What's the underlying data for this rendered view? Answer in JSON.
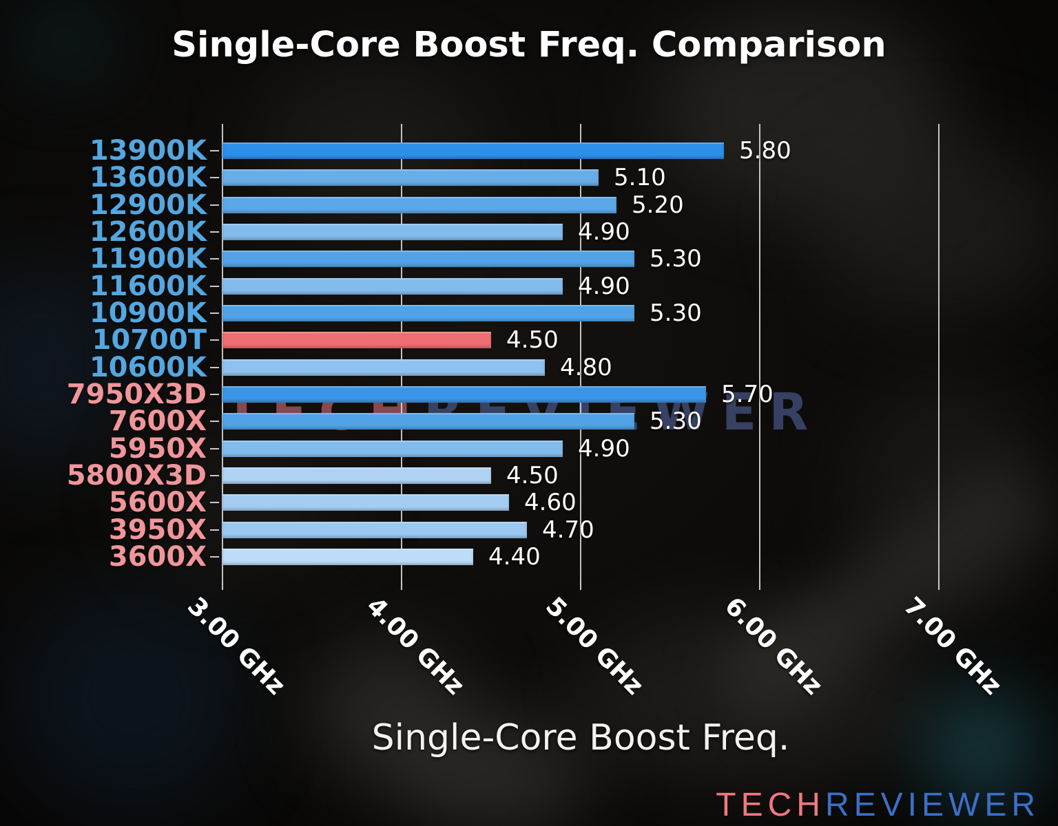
{
  "title": "Single-Core Boost Freq. Comparison",
  "watermark": {
    "tech": "TECH",
    "reviewer": "REVIEWER"
  },
  "logo": {
    "tech": "TECH",
    "reviewer": "REVIEWER"
  },
  "colors": {
    "title": "#ffffff",
    "grid": "#d6d6d6",
    "value_label": "#ffffff",
    "intel_label": "#54a7e0",
    "amd_label": "#f0969a",
    "highlight_bar": "#ee6e72",
    "watermark_tech": "#96555e",
    "watermark_reviewer": "#51649f",
    "logo_tech": "#f0797f",
    "logo_reviewer": "#3c6fc8"
  },
  "chart_data": {
    "type": "bar",
    "orientation": "horizontal",
    "title": "Single-Core Boost Freq. Comparison",
    "xlabel": "Single-Core Boost Freq.",
    "ylabel": "",
    "unit": "GHz",
    "xlim": [
      3.0,
      7.45
    ],
    "grid": true,
    "legend": "none",
    "tick_label_rotation_deg": 45,
    "x_ticks": [
      {
        "value": 3.0,
        "label": "3.00 GHz"
      },
      {
        "value": 4.0,
        "label": "4.00 GHz"
      },
      {
        "value": 5.0,
        "label": "5.00 GHz"
      },
      {
        "value": 6.0,
        "label": "6.00 GHz"
      },
      {
        "value": 7.0,
        "label": "7.00 GHz"
      }
    ],
    "categories": [
      "13900K",
      "13600K",
      "12900K",
      "12600K",
      "11900K",
      "11600K",
      "10900K",
      "10700T",
      "10600K",
      "7950X3D",
      "7600X",
      "5950X",
      "5800X3D",
      "5600X",
      "3950X",
      "3600X"
    ],
    "values": [
      5.8,
      5.1,
      5.2,
      4.9,
      5.3,
      4.9,
      5.3,
      4.5,
      4.8,
      5.7,
      5.3,
      4.9,
      4.5,
      4.6,
      4.7,
      4.4
    ],
    "bars": [
      {
        "label": "13900K",
        "value": 5.8,
        "value_label": "5.80",
        "bar_color": "#2d8fea",
        "label_color": "#54a7e0"
      },
      {
        "label": "13600K",
        "value": 5.1,
        "value_label": "5.10",
        "bar_color": "#68ade8",
        "label_color": "#54a7e0"
      },
      {
        "label": "12900K",
        "value": 5.2,
        "value_label": "5.20",
        "bar_color": "#5ba7e7",
        "label_color": "#54a7e0"
      },
      {
        "label": "12600K",
        "value": 4.9,
        "value_label": "4.90",
        "bar_color": "#82bbec",
        "label_color": "#54a7e0"
      },
      {
        "label": "11900K",
        "value": 5.3,
        "value_label": "5.30",
        "bar_color": "#51a2e6",
        "label_color": "#54a7e0"
      },
      {
        "label": "11600K",
        "value": 4.9,
        "value_label": "4.90",
        "bar_color": "#82bbec",
        "label_color": "#54a7e0"
      },
      {
        "label": "10900K",
        "value": 5.3,
        "value_label": "5.30",
        "bar_color": "#51a2e6",
        "label_color": "#54a7e0"
      },
      {
        "label": "10700T",
        "value": 4.5,
        "value_label": "4.50",
        "bar_color": "#ee6e72",
        "label_color": "#54a7e0"
      },
      {
        "label": "10600K",
        "value": 4.8,
        "value_label": "4.80",
        "bar_color": "#8fc2ee",
        "label_color": "#54a7e0"
      },
      {
        "label": "7950X3D",
        "value": 5.7,
        "value_label": "5.70",
        "bar_color": "#3b95e6",
        "label_color": "#f0969a"
      },
      {
        "label": "7600X",
        "value": 5.3,
        "value_label": "5.30",
        "bar_color": "#51a2e6",
        "label_color": "#f0969a"
      },
      {
        "label": "5950X",
        "value": 4.9,
        "value_label": "4.90",
        "bar_color": "#82bbec",
        "label_color": "#f0969a"
      },
      {
        "label": "5800X3D",
        "value": 4.5,
        "value_label": "4.50",
        "bar_color": "#b0d3f4",
        "label_color": "#f0969a"
      },
      {
        "label": "5600X",
        "value": 4.6,
        "value_label": "4.60",
        "bar_color": "#a5cdf2",
        "label_color": "#f0969a"
      },
      {
        "label": "3950X",
        "value": 4.7,
        "value_label": "4.70",
        "bar_color": "#9ac8f0",
        "label_color": "#f0969a"
      },
      {
        "label": "3600X",
        "value": 4.4,
        "value_label": "4.40",
        "bar_color": "#bcdcf8",
        "label_color": "#f0969a"
      }
    ]
  }
}
